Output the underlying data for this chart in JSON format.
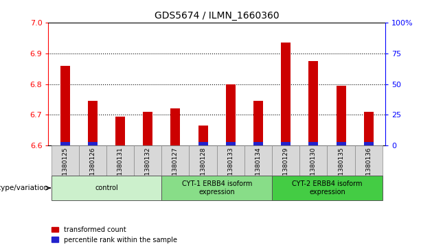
{
  "title": "GDS5674 / ILMN_1660360",
  "samples": [
    "GSM1380125",
    "GSM1380126",
    "GSM1380131",
    "GSM1380132",
    "GSM1380127",
    "GSM1380128",
    "GSM1380133",
    "GSM1380134",
    "GSM1380129",
    "GSM1380130",
    "GSM1380135",
    "GSM1380136"
  ],
  "red_values": [
    6.86,
    6.745,
    6.695,
    6.71,
    6.72,
    6.665,
    6.8,
    6.745,
    6.935,
    6.875,
    6.795,
    6.71
  ],
  "blue_fractions": [
    0.12,
    0.1,
    0.0,
    0.0,
    0.0,
    0.1,
    0.1,
    0.1,
    0.13,
    0.13,
    0.1,
    0.1
  ],
  "y_min": 6.6,
  "y_max": 7.0,
  "yticks_left": [
    6.6,
    6.7,
    6.8,
    6.9,
    7.0
  ],
  "yticks_right": [
    0,
    25,
    50,
    75,
    100
  ],
  "grid_lines": [
    6.7,
    6.8,
    6.9
  ],
  "groups": [
    {
      "label": "control",
      "start": 0,
      "end": 3,
      "color": "#ccf0cc"
    },
    {
      "label": "CYT-1 ERBB4 isoform\nexpression",
      "start": 4,
      "end": 7,
      "color": "#88dd88"
    },
    {
      "label": "CYT-2 ERBB4 isoform\nexpression",
      "start": 8,
      "end": 11,
      "color": "#44cc44"
    }
  ],
  "bar_width": 0.35,
  "bar_color_red": "#cc0000",
  "bar_color_blue": "#2222cc",
  "legend_red": "transformed count",
  "legend_blue": "percentile rank within the sample",
  "genotype_label": "genotype/variation",
  "xtick_bg": "#d8d8d8",
  "plot_bg": "#ffffff"
}
